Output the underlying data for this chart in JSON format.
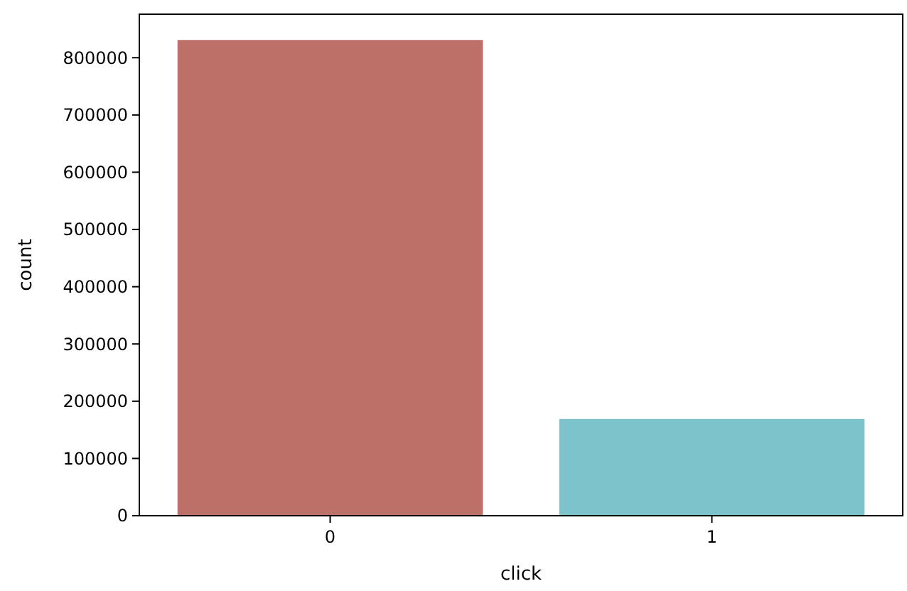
{
  "chart_data": {
    "type": "bar",
    "xlabel": "click",
    "ylabel": "count",
    "categories": [
      "0",
      "1"
    ],
    "values": [
      831000,
      169000
    ],
    "colors": [
      "#bc7068",
      "#7dc3cc"
    ],
    "ylim": [
      0,
      876000
    ],
    "yticks": [
      0,
      100000,
      200000,
      300000,
      400000,
      500000,
      600000,
      700000,
      800000
    ],
    "grid": false
  }
}
